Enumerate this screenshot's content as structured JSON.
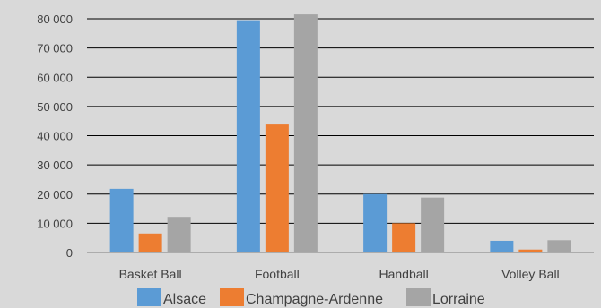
{
  "chart_data": {
    "type": "bar",
    "categories": [
      "Basket Ball",
      "Football",
      "Handball",
      "Volley Ball"
    ],
    "series": [
      {
        "name": "Alsace",
        "color": "#5b9bd5",
        "values": [
          21800,
          79500,
          20000,
          4000
        ]
      },
      {
        "name": "Champagne-Ardenne",
        "color": "#ed7d31",
        "values": [
          6500,
          43800,
          10000,
          1000
        ]
      },
      {
        "name": "Lorraine",
        "color": "#a5a5a5",
        "values": [
          12200,
          81500,
          18800,
          4200
        ]
      }
    ],
    "yticks": [
      "0",
      "10 000",
      "20 000",
      "30 000",
      "40 000",
      "50 000",
      "60 000",
      "70 000",
      "80 000"
    ],
    "ylim": [
      0,
      80000
    ],
    "grid": true,
    "legend_position": "bottom"
  }
}
